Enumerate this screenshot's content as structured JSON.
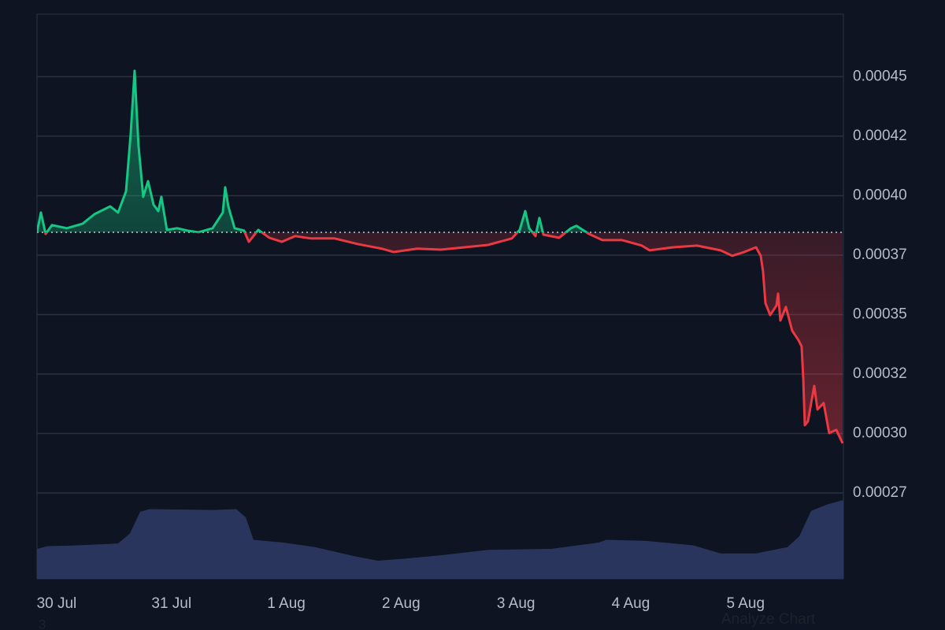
{
  "chart_data": {
    "type": "line",
    "x": [
      -0.171,
      -0.137,
      -0.096,
      -0.041,
      0.089,
      0.226,
      0.329,
      0.466,
      0.535,
      0.604,
      0.645,
      0.679,
      0.693,
      0.713,
      0.754,
      0.796,
      0.844,
      0.885,
      0.912,
      0.96,
      1.049,
      1.139,
      1.235,
      1.358,
      1.447,
      1.468,
      1.495,
      1.55,
      1.632,
      1.674,
      1.756,
      1.852,
      1.962,
      2.078,
      2.215,
      2.421,
      2.627,
      2.833,
      2.936,
      3.141,
      3.347,
      3.553,
      3.759,
      3.964,
      4.033,
      4.081,
      4.115,
      4.17,
      4.204,
      4.239,
      4.376,
      4.479,
      4.527,
      4.636,
      4.753,
      4.925,
      5.096,
      5.165,
      5.37,
      5.576,
      5.782,
      5.885,
      5.988,
      6.091,
      6.132,
      6.152,
      6.173,
      6.214,
      6.269,
      6.283,
      6.303,
      6.351,
      6.406,
      6.461,
      6.488,
      6.502,
      6.516,
      6.543,
      6.598,
      6.626,
      6.68,
      6.728,
      6.79,
      6.845
    ],
    "values": [
      0.0003846,
      0.0003929,
      0.0003839,
      0.0003876,
      0.0003863,
      0.0003882,
      0.0003922,
      0.0003955,
      0.0003929,
      0.0004018,
      0.000426,
      0.0004525,
      0.0004392,
      0.000421,
      0.0003995,
      0.0004061,
      0.0003962,
      0.0003935,
      0.0003995,
      0.0003856,
      0.0003863,
      0.0003853,
      0.0003846,
      0.0003863,
      0.0003929,
      0.0004035,
      0.0003955,
      0.0003863,
      0.0003853,
      0.0003806,
      0.0003856,
      0.0003823,
      0.0003806,
      0.000383,
      0.000382,
      0.000382,
      0.0003796,
      0.0003777,
      0.0003763,
      0.0003777,
      0.0003773,
      0.0003783,
      0.0003793,
      0.000382,
      0.0003856,
      0.0003935,
      0.0003863,
      0.000383,
      0.0003906,
      0.0003836,
      0.0003823,
      0.0003863,
      0.0003873,
      0.0003839,
      0.0003813,
      0.0003813,
      0.000379,
      0.000377,
      0.0003783,
      0.000379,
      0.000377,
      0.0003747,
      0.0003763,
      0.0003783,
      0.0003747,
      0.0003681,
      0.0003548,
      0.0003498,
      0.0003538,
      0.0003588,
      0.0003475,
      0.0003532,
      0.0003432,
      0.0003392,
      0.0003366,
      0.0003234,
      0.0003035,
      0.0003051,
      0.00032,
      0.0003101,
      0.0003128,
      0.0003002,
      0.0003015,
      0.0002959
    ],
    "baseline": 0.0003846,
    "colors": {
      "above": "#16c784",
      "below": "#ea3943"
    },
    "xlim": [
      -0.171,
      6.852
    ],
    "ylim": [
      0.0002389,
      0.0004763
    ],
    "xticks": [
      {
        "value": 0,
        "label": "30 Jul"
      },
      {
        "value": 1,
        "label": "31 Jul"
      },
      {
        "value": 2,
        "label": "1 Aug"
      },
      {
        "value": 3,
        "label": "2 Aug"
      },
      {
        "value": 4,
        "label": "3 Aug"
      },
      {
        "value": 5,
        "label": "4 Aug"
      },
      {
        "value": 6,
        "label": "5 Aug"
      }
    ],
    "yticks": [
      {
        "value": 0.00045,
        "label": "0.00045"
      },
      {
        "value": 0.000425,
        "label": "0.00042"
      },
      {
        "value": 0.0004,
        "label": "0.00040"
      },
      {
        "value": 0.000375,
        "label": "0.00037"
      },
      {
        "value": 0.00035,
        "label": "0.00035"
      },
      {
        "value": 0.000325,
        "label": "0.00032"
      },
      {
        "value": 0.0003,
        "label": "0.00030"
      },
      {
        "value": 0.000275,
        "label": "0.00027"
      }
    ],
    "grid": true,
    "volume": {
      "x": [
        -0.171,
        -0.082,
        0.192,
        0.535,
        0.638,
        0.727,
        0.809,
        1.358,
        1.564,
        1.646,
        1.715,
        1.975,
        2.25,
        2.593,
        2.798,
        3.004,
        3.347,
        3.759,
        4.307,
        4.719,
        4.787,
        5.13,
        5.542,
        5.782,
        6.091,
        6.365,
        6.468,
        6.571,
        6.708,
        6.852
      ],
      "values": [
        33,
        36,
        37,
        39,
        50,
        74,
        77,
        76,
        77,
        68,
        43,
        40,
        35,
        25,
        20,
        22,
        26,
        32,
        33,
        40,
        43,
        42,
        37,
        28,
        28,
        35,
        47,
        75,
        82,
        87
      ],
      "vlim": [
        0,
        100
      ],
      "color": "#2a355e"
    },
    "annotations": [
      "Analyze Chart",
      "3"
    ]
  }
}
